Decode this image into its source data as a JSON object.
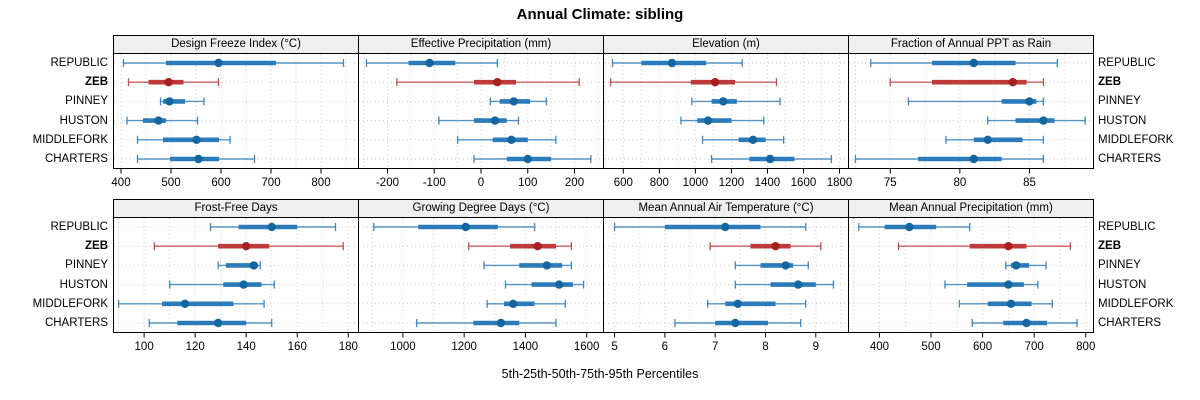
{
  "title": "Annual Climate: sibling",
  "xlabel": "5th-25th-50th-75th-95th Percentiles",
  "colors": {
    "normal_line": "#2b7bba",
    "normal_band": "#2b7bba",
    "normal_dot": "#15669f",
    "highlight_line": "#bf3a3a",
    "highlight_band": "#bf3a3a",
    "highlight_dot": "#a52020",
    "grid": "#c9c9c9",
    "strip_bg": "#efefef",
    "border": "#000000"
  },
  "chart_data": {
    "type": "dotplot",
    "subtype": "percentile-range-trellis",
    "title": "Annual Climate: sibling",
    "xlabel": "5th-25th-50th-75th-95th Percentiles",
    "percentile_labels": [
      "5th",
      "25th",
      "50th",
      "75th",
      "95th"
    ],
    "sites": [
      "REPUBLIC",
      "ZEB",
      "PINNEY",
      "HUSTON",
      "MIDDLEFORK",
      "CHARTERS"
    ],
    "highlight_site": "ZEB",
    "layout": {
      "rows": 2,
      "cols": 4,
      "grid": "dotted",
      "site_labels": "both-sides"
    },
    "panels": [
      {
        "title": "Design Freeze Index (°C)",
        "xlim": [
          385,
          875
        ],
        "ticks": [
          400,
          500,
          600,
          700,
          800
        ],
        "grid_step": 50,
        "series": [
          {
            "site": "REPUBLIC",
            "values": [
              405,
              490,
              595,
              710,
              845
            ]
          },
          {
            "site": "ZEB",
            "values": [
              415,
              455,
              495,
              525,
              595
            ]
          },
          {
            "site": "PINNEY",
            "values": [
              479,
              484,
              497,
              528,
              566
            ]
          },
          {
            "site": "HUSTON",
            "values": [
              412,
              444,
              475,
              490,
              553
            ]
          },
          {
            "site": "MIDDLEFORK",
            "values": [
              433,
              484,
              551,
              596,
              618
            ]
          },
          {
            "site": "CHARTERS",
            "values": [
              433,
              498,
              555,
              596,
              667
            ]
          }
        ]
      },
      {
        "title": "Effective Precipitation (mm)",
        "xlim": [
          -262,
          262
        ],
        "ticks": [
          -200,
          -100,
          0,
          100,
          200
        ],
        "grid_step": 50,
        "series": [
          {
            "site": "REPUBLIC",
            "values": [
              -245,
              -155,
              -110,
              -55,
              35
            ]
          },
          {
            "site": "ZEB",
            "values": [
              -180,
              -15,
              35,
              75,
              210
            ]
          },
          {
            "site": "PINNEY",
            "values": [
              20,
              40,
              70,
              105,
              140
            ]
          },
          {
            "site": "HUSTON",
            "values": [
              -90,
              -15,
              30,
              55,
              80
            ]
          },
          {
            "site": "MIDDLEFORK",
            "values": [
              -50,
              25,
              65,
              100,
              160
            ]
          },
          {
            "site": "CHARTERS",
            "values": [
              -15,
              55,
              100,
              150,
              235
            ]
          }
        ]
      },
      {
        "title": "Elevation (m)",
        "xlim": [
          490,
          1850
        ],
        "ticks": [
          600,
          800,
          1000,
          1200,
          1400,
          1600,
          1800
        ],
        "grid_step": 100,
        "series": [
          {
            "site": "REPUBLIC",
            "values": [
              540,
              700,
              870,
              1060,
              1260
            ]
          },
          {
            "site": "ZEB",
            "values": [
              530,
              975,
              1110,
              1220,
              1450
            ]
          },
          {
            "site": "PINNEY",
            "values": [
              980,
              1090,
              1155,
              1230,
              1470
            ]
          },
          {
            "site": "HUSTON",
            "values": [
              920,
              1010,
              1070,
              1200,
              1380
            ]
          },
          {
            "site": "MIDDLEFORK",
            "values": [
              1040,
              1240,
              1320,
              1390,
              1490
            ]
          },
          {
            "site": "CHARTERS",
            "values": [
              1090,
              1300,
              1415,
              1550,
              1755
            ]
          }
        ]
      },
      {
        "title": "Fraction of Annual PPT as Rain",
        "xlim": [
          72,
          89.6
        ],
        "ticks": [
          75,
          80,
          85
        ],
        "grid_step": 2.5,
        "series": [
          {
            "site": "REPUBLIC",
            "values": [
              73.6,
              78,
              81,
              84,
              87
            ]
          },
          {
            "site": "ZEB",
            "values": [
              75,
              78,
              83.8,
              84.8,
              86
            ]
          },
          {
            "site": "PINNEY",
            "values": [
              76.3,
              83,
              85,
              85.5,
              86
            ]
          },
          {
            "site": "HUSTON",
            "values": [
              82,
              84,
              86,
              86.8,
              89
            ]
          },
          {
            "site": "MIDDLEFORK",
            "values": [
              79,
              81,
              82,
              84.5,
              86
            ]
          },
          {
            "site": "CHARTERS",
            "values": [
              72.5,
              77,
              81,
              83,
              86
            ]
          }
        ]
      },
      {
        "title": "Frost-Free Days",
        "xlim": [
          88,
          184
        ],
        "ticks": [
          100,
          120,
          140,
          160,
          180
        ],
        "grid_step": 10,
        "series": [
          {
            "site": "REPUBLIC",
            "values": [
              126,
              137,
              150,
              160,
              175
            ]
          },
          {
            "site": "ZEB",
            "values": [
              104,
              129,
              140,
              149,
              178
            ]
          },
          {
            "site": "PINNEY",
            "values": [
              129,
              132,
              143,
              144.5,
              145.5
            ]
          },
          {
            "site": "HUSTON",
            "values": [
              110,
              131,
              139,
              146,
              151
            ]
          },
          {
            "site": "MIDDLEFORK",
            "values": [
              90,
              107,
              116,
              135,
              147
            ]
          },
          {
            "site": "CHARTERS",
            "values": [
              102,
              113,
              129,
              140,
              150
            ]
          }
        ]
      },
      {
        "title": "Growing Degree Days (°C)",
        "xlim": [
          855,
          1655
        ],
        "ticks": [
          1000,
          1200,
          1400,
          1600
        ],
        "grid_step": 100,
        "series": [
          {
            "site": "REPUBLIC",
            "values": [
              905,
              1050,
              1205,
              1310,
              1430
            ]
          },
          {
            "site": "ZEB",
            "values": [
              1215,
              1350,
              1440,
              1500,
              1550
            ]
          },
          {
            "site": "PINNEY",
            "values": [
              1265,
              1380,
              1470,
              1520,
              1550
            ]
          },
          {
            "site": "HUSTON",
            "values": [
              1335,
              1420,
              1510,
              1555,
              1590
            ]
          },
          {
            "site": "MIDDLEFORK",
            "values": [
              1275,
              1330,
              1360,
              1430,
              1530
            ]
          },
          {
            "site": "CHARTERS",
            "values": [
              1045,
              1230,
              1320,
              1380,
              1500
            ]
          }
        ]
      },
      {
        "title": "Mean Annual Air Temperature (°C)",
        "xlim": [
          4.78,
          9.65
        ],
        "ticks": [
          5,
          6,
          7,
          8,
          9
        ],
        "grid_step": 0.5,
        "series": [
          {
            "site": "REPUBLIC",
            "values": [
              5.0,
              6.0,
              7.2,
              7.9,
              8.8
            ]
          },
          {
            "site": "ZEB",
            "values": [
              6.9,
              7.7,
              8.2,
              8.5,
              9.1
            ]
          },
          {
            "site": "PINNEY",
            "values": [
              7.4,
              7.9,
              8.4,
              8.55,
              8.85
            ]
          },
          {
            "site": "HUSTON",
            "values": [
              7.4,
              8.1,
              8.65,
              9.0,
              9.35
            ]
          },
          {
            "site": "MIDDLEFORK",
            "values": [
              6.85,
              7.2,
              7.45,
              8.2,
              8.8
            ]
          },
          {
            "site": "CHARTERS",
            "values": [
              6.2,
              7.0,
              7.4,
              8.05,
              8.7
            ]
          }
        ]
      },
      {
        "title": "Mean Annual Precipitation (mm)",
        "xlim": [
          340,
          815
        ],
        "ticks": [
          400,
          500,
          600,
          700,
          800
        ],
        "grid_step": 50,
        "series": [
          {
            "site": "REPUBLIC",
            "values": [
              360,
              410,
              458,
              510,
              575
            ]
          },
          {
            "site": "ZEB",
            "values": [
              437,
              575,
              650,
              685,
              770
            ]
          },
          {
            "site": "PINNEY",
            "values": [
              645,
              655,
              665,
              690,
              723
            ]
          },
          {
            "site": "HUSTON",
            "values": [
              527,
              570,
              650,
              680,
              707
            ]
          },
          {
            "site": "MIDDLEFORK",
            "values": [
              555,
              610,
              655,
              695,
              735
            ]
          },
          {
            "site": "CHARTERS",
            "values": [
              580,
              640,
              685,
              725,
              783
            ]
          }
        ]
      }
    ]
  }
}
